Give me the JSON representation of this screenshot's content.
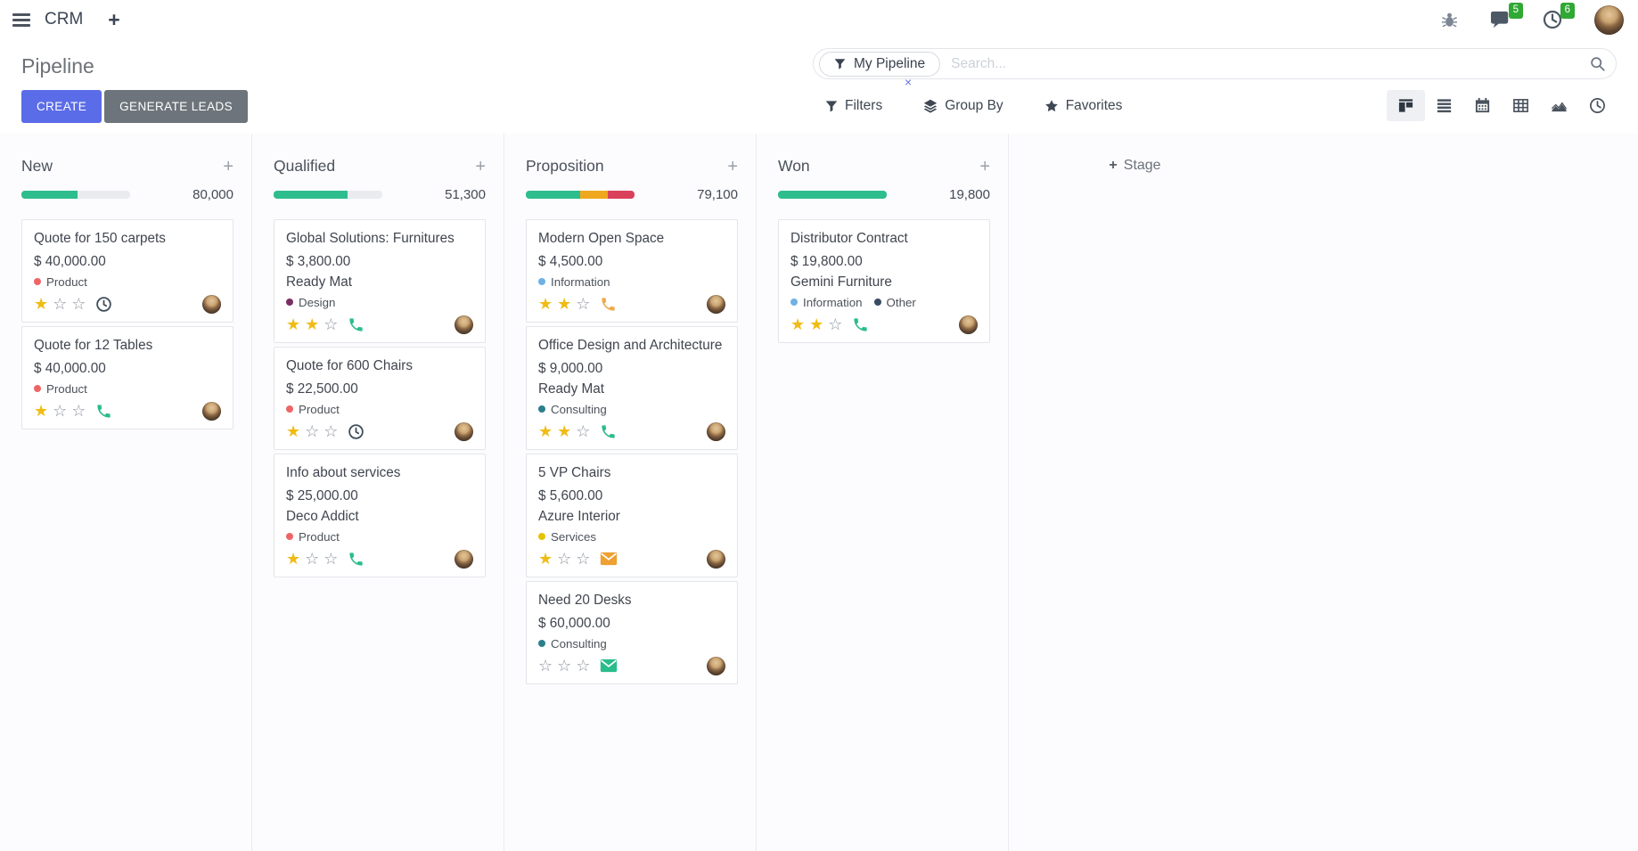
{
  "nav": {
    "app_name": "CRM",
    "messages_badge": "5",
    "activities_badge": "6"
  },
  "control_panel": {
    "title": "Pipeline",
    "create_label": "CREATE",
    "generate_leads_label": "GENERATE LEADS",
    "search": {
      "facet_label": "My Pipeline",
      "facet_remove": "×",
      "placeholder": "Search..."
    },
    "filters_label": "Filters",
    "group_by_label": "Group By",
    "favorites_label": "Favorites"
  },
  "colors": {
    "accent": "#5b6ce8",
    "badge_green": "#2fa834",
    "progress_green": "#2ebd8c",
    "progress_yellow": "#efa81e",
    "progress_red": "#d9415a",
    "star_filled": "#f0bc14"
  },
  "board": {
    "add_stage_plus": "+",
    "add_stage_label": "Stage",
    "columns": [
      {
        "name": "New",
        "total": "80,000",
        "progress": [
          {
            "color": "#2ebd8c",
            "pct": 52
          }
        ],
        "cards": [
          {
            "title": "Quote for 150 carpets",
            "amount": "$ 40,000.00",
            "partner": "",
            "tags": [
              {
                "label": "Product",
                "color": "#ef6565"
              }
            ],
            "stars": 1,
            "activity": {
              "icon": "clock-icon",
              "color": "#3f4e5a"
            }
          },
          {
            "title": "Quote for 12 Tables",
            "amount": "$ 40,000.00",
            "partner": "",
            "tags": [
              {
                "label": "Product",
                "color": "#ef6565"
              }
            ],
            "stars": 1,
            "activity": {
              "icon": "phone-icon",
              "color": "#2abd8c"
            }
          }
        ]
      },
      {
        "name": "Qualified",
        "total": "51,300",
        "progress": [
          {
            "color": "#2ebd8c",
            "pct": 68
          }
        ],
        "cards": [
          {
            "title": "Global Solutions: Furnitures",
            "amount": "$ 3,800.00",
            "partner": "Ready Mat",
            "tags": [
              {
                "label": "Design",
                "color": "#7a2f62"
              }
            ],
            "stars": 2,
            "activity": {
              "icon": "phone-icon",
              "color": "#2abd8c"
            }
          },
          {
            "title": "Quote for 600 Chairs",
            "amount": "$ 22,500.00",
            "partner": "",
            "tags": [
              {
                "label": "Product",
                "color": "#ef6565"
              }
            ],
            "stars": 1,
            "activity": {
              "icon": "clock-icon",
              "color": "#3f4e5a"
            }
          },
          {
            "title": "Info about services",
            "amount": "$ 25,000.00",
            "partner": "Deco Addict",
            "tags": [
              {
                "label": "Product",
                "color": "#ef6565"
              }
            ],
            "stars": 1,
            "activity": {
              "icon": "phone-icon",
              "color": "#2abd8c"
            }
          }
        ]
      },
      {
        "name": "Proposition",
        "total": "79,100",
        "progress": [
          {
            "color": "#2ebd8c",
            "pct": 50
          },
          {
            "color": "#efa81e",
            "pct": 25
          },
          {
            "color": "#d9415a",
            "pct": 25
          }
        ],
        "cards": [
          {
            "title": "Modern Open Space",
            "amount": "$ 4,500.00",
            "partner": "",
            "tags": [
              {
                "label": "Information",
                "color": "#6fb1e4"
              }
            ],
            "stars": 2,
            "activity": {
              "icon": "phone-icon",
              "color": "#eea849"
            }
          },
          {
            "title": "Office Design and Architecture",
            "amount": "$ 9,000.00",
            "partner": "Ready Mat",
            "tags": [
              {
                "label": "Consulting",
                "color": "#2a7f8d"
              }
            ],
            "stars": 2,
            "activity": {
              "icon": "phone-icon",
              "color": "#2abd8c"
            }
          },
          {
            "title": "5 VP Chairs",
            "amount": "$ 5,600.00",
            "partner": "Azure Interior",
            "tags": [
              {
                "label": "Services",
                "color": "#e6c300"
              }
            ],
            "stars": 1,
            "activity": {
              "icon": "envelope-icon",
              "color": "#eea032"
            }
          },
          {
            "title": "Need 20 Desks",
            "amount": "$ 60,000.00",
            "partner": "",
            "tags": [
              {
                "label": "Consulting",
                "color": "#2a7f8d"
              }
            ],
            "stars": 0,
            "activity": {
              "icon": "envelope-icon",
              "color": "#2abd8c"
            }
          }
        ]
      },
      {
        "name": "Won",
        "total": "19,800",
        "progress": [
          {
            "color": "#2ebd8c",
            "pct": 100
          }
        ],
        "cards": [
          {
            "title": "Distributor Contract",
            "amount": "$ 19,800.00",
            "partner": "Gemini Furniture",
            "tags": [
              {
                "label": "Information",
                "color": "#6fb1e4"
              },
              {
                "label": "Other",
                "color": "#3a4b60"
              }
            ],
            "stars": 2,
            "activity": {
              "icon": "phone-icon",
              "color": "#2abd8c"
            }
          }
        ]
      }
    ]
  }
}
